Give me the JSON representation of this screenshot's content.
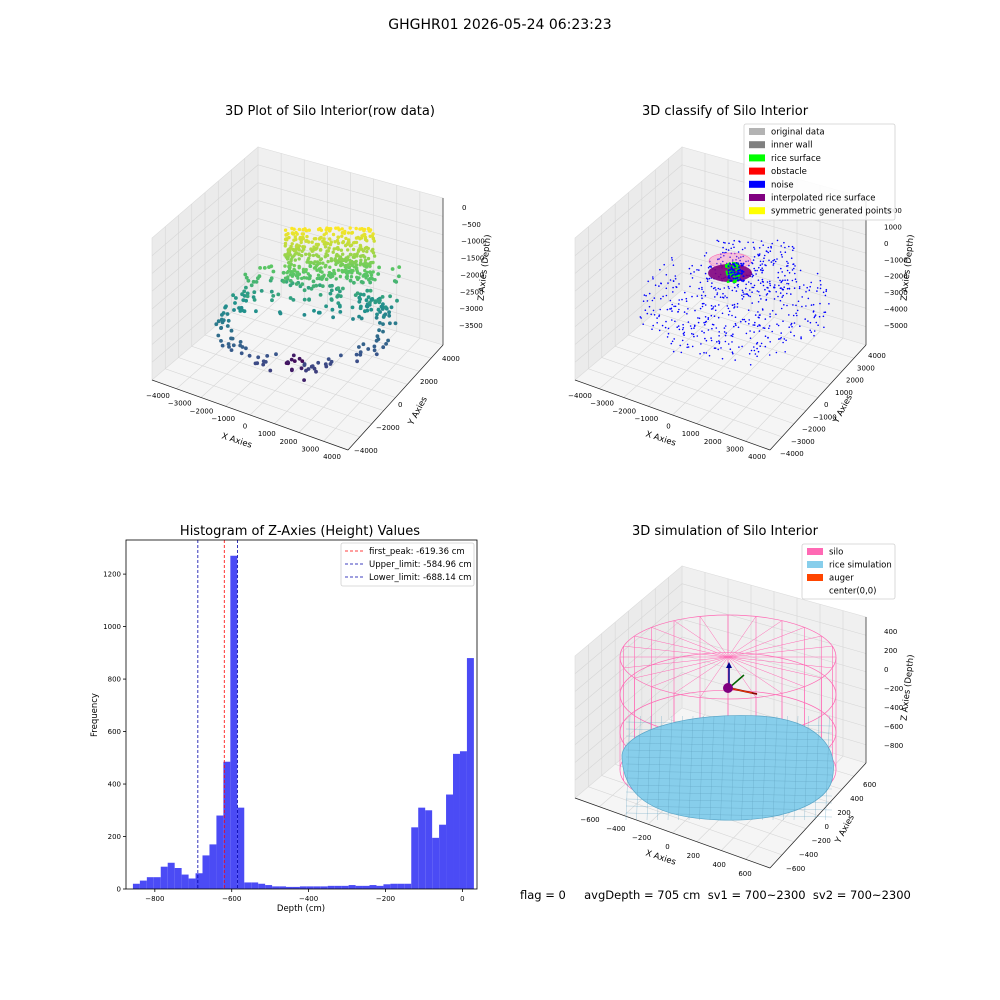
{
  "suptitle": "GHGHR01 2026-05-24 06:23:23",
  "stats_text": "flag = 0     avgDepth = 705 cm  sv1 = 700~2300  sv2 = 700~2300",
  "chart_data": [
    {
      "id": "raw",
      "type": "scatter3d",
      "title": "3D Plot of Silo Interior(row data)",
      "xlabel": "X Axies",
      "ylabel": "Y Axies",
      "zlabel": "Z Axies (Depth)",
      "x_ticks": [
        "−4000",
        "−3000",
        "−2000",
        "−1000",
        "0",
        "1000",
        "2000",
        "3000",
        "4000"
      ],
      "y_ticks": [
        "−4000",
        "−2000",
        "0",
        "2000",
        "4000"
      ],
      "z_ticks": [
        "0",
        "−500",
        "−1000",
        "−1500",
        "−2000",
        "−2500",
        "−3000",
        "−3500"
      ],
      "colormap": "viridis"
    },
    {
      "id": "classify",
      "type": "scatter3d",
      "title": "3D classify of Silo Interior",
      "xlabel": "X Axies",
      "ylabel": "Y Axies",
      "zlabel": "Z Axies (Depth)",
      "x_ticks": [
        "−4000",
        "−3000",
        "−2000",
        "−1000",
        "0",
        "1000",
        "2000",
        "3000",
        "4000"
      ],
      "y_ticks": [
        "−4000",
        "−3000",
        "−2000",
        "−1000",
        "0",
        "1000",
        "2000",
        "3000",
        "4000"
      ],
      "z_ticks": [
        "2000",
        "1000",
        "0",
        "−1000",
        "−2000",
        "−3000",
        "−4000",
        "−5000"
      ],
      "legend": [
        {
          "label": "original data",
          "color": "#b3b3b3"
        },
        {
          "label": "inner wall",
          "color": "#808080"
        },
        {
          "label": "rice surface",
          "color": "#00ff00"
        },
        {
          "label": "obstacle",
          "color": "#ff0000"
        },
        {
          "label": "noise",
          "color": "#0000ff"
        },
        {
          "label": "interpolated rice surface",
          "color": "#800080"
        },
        {
          "label": "symmetric generated points",
          "color": "#ffff00"
        }
      ],
      "legend_position": "top-right"
    },
    {
      "id": "hist",
      "type": "bar",
      "title": "Histogram of Z-Axies (Height) Values",
      "xlabel": "Depth (cm)",
      "ylabel": "Frequency",
      "xlim": [
        -875,
        38
      ],
      "ylim": [
        0,
        1330
      ],
      "x_ticks": [
        -800,
        -600,
        -400,
        -200,
        0
      ],
      "x_tick_labels": [
        "−800",
        "−600",
        "−400",
        "−200",
        "0"
      ],
      "y_ticks": [
        0,
        200,
        400,
        600,
        800,
        1000,
        1200
      ],
      "bar_color": "#4b4bf5",
      "bin_start": -857,
      "bin_width": 18.1,
      "values": [
        20,
        32,
        45,
        45,
        85,
        100,
        80,
        55,
        40,
        60,
        128,
        170,
        280,
        485,
        1270,
        310,
        25,
        25,
        20,
        15,
        10,
        10,
        8,
        8,
        10,
        10,
        10,
        10,
        12,
        12,
        12,
        15,
        12,
        12,
        15,
        12,
        18,
        20,
        20,
        20,
        235,
        310,
        300,
        195,
        245,
        360,
        515,
        525,
        880
      ],
      "vlines": [
        {
          "label": "first_peak: -619.36 cm",
          "x": -619.36,
          "color": "#ff0000"
        },
        {
          "label": "Upper_limit: -584.96 cm",
          "x": -584.96,
          "color": "#0000aa"
        },
        {
          "label": "Lower_limit: -688.14 cm",
          "x": -688.14,
          "color": "#0000aa"
        }
      ],
      "legend_position": "top-right"
    },
    {
      "id": "sim",
      "type": "surface3d",
      "title": "3D simulation of Silo Interior",
      "xlabel": "X Axies",
      "ylabel": "Y Axies",
      "zlabel": "Z Axies (Depth)",
      "x_ticks": [
        "−600",
        "−400",
        "−200",
        "0",
        "200",
        "400",
        "600"
      ],
      "y_ticks": [
        "−600",
        "−400",
        "−200",
        "0",
        "200",
        "400",
        "600"
      ],
      "z_ticks": [
        "400",
        "200",
        "0",
        "−200",
        "−400",
        "−600",
        "−800"
      ],
      "legend": [
        {
          "label": "silo",
          "color": "#ff69b4"
        },
        {
          "label": "rice simulation",
          "color": "#87ceeb"
        },
        {
          "label": "auger",
          "color": "#ff4500"
        },
        {
          "label": "center(0,0)",
          "color": ""
        }
      ],
      "legend_position": "top-right"
    }
  ]
}
